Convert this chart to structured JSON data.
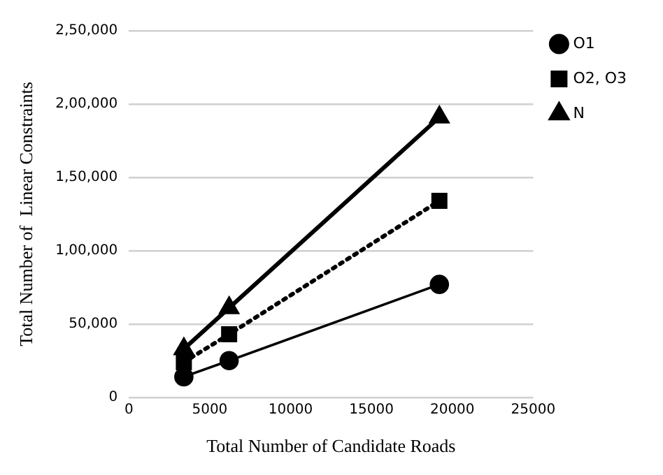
{
  "chart_data": {
    "type": "line",
    "xlabel": "Total Number of Candidate Roads",
    "ylabel": "Total Number of  Linear Constraints",
    "x": [
      3400,
      6200,
      19200
    ],
    "series": [
      {
        "name": "O1",
        "color": "#000000",
        "values": [
          14000,
          25000,
          77000
        ],
        "marker": "circle",
        "line_style": "solid"
      },
      {
        "name": "O2, O3",
        "color": "#000000",
        "values": [
          24000,
          43000,
          134000
        ],
        "marker": "square",
        "line_style": "dotted"
      },
      {
        "name": "N",
        "color": "#000000",
        "values": [
          33000,
          61000,
          191000
        ],
        "marker": "triangle",
        "line_style": "solid"
      }
    ],
    "xlim": [
      0,
      25000
    ],
    "xticks": [
      0,
      5000,
      10000,
      15000,
      20000,
      25000
    ],
    "ylim": [
      0,
      250000
    ],
    "yticks": [
      {
        "value": 0,
        "label": "0"
      },
      {
        "value": 50000,
        "label": "50,000"
      },
      {
        "value": 100000,
        "label": "1,00,000"
      },
      {
        "value": 150000,
        "label": "1,50,000"
      },
      {
        "value": 200000,
        "label": "2,00,000"
      },
      {
        "value": 250000,
        "label": "2,50,000"
      }
    ],
    "grid": "y",
    "legend": "top right"
  }
}
